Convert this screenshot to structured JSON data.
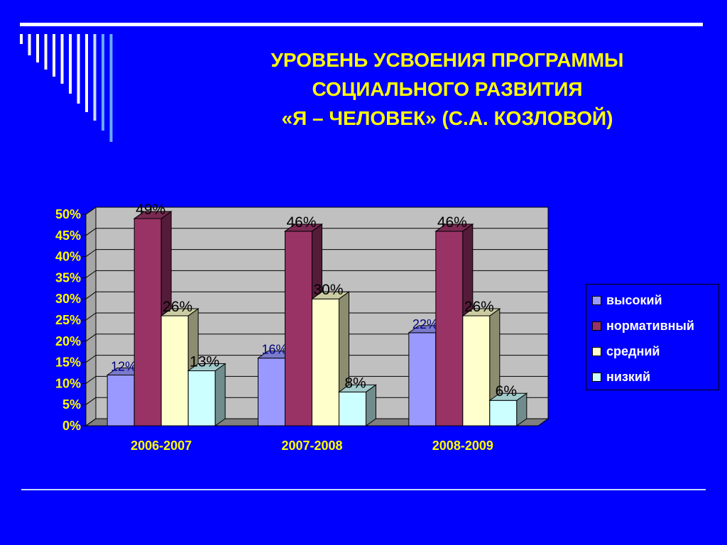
{
  "slide": {
    "title_lines": [
      "УРОВЕНЬ УСВОЕНИЯ ПРОГРАММЫ",
      "СОЦИАЛЬНОГО  РАЗВИТИЯ",
      "«Я – ЧЕЛОВЕК» (С.А. КОЗЛОВОЙ)"
    ]
  },
  "legend": {
    "items": [
      {
        "label": "высокий",
        "color": "#9999ff"
      },
      {
        "label": "нормативный",
        "color": "#993366"
      },
      {
        "label": "средний",
        "color": "#ffffcc"
      },
      {
        "label": "низкий",
        "color": "#ccffff"
      }
    ]
  },
  "chart_data": {
    "type": "bar",
    "categories": [
      "2006-2007",
      "2007-2008",
      "2008-2009"
    ],
    "series": [
      {
        "name": "высокий",
        "values": [
          12,
          16,
          22
        ],
        "labels": [
          "12%",
          "16%",
          "22%"
        ],
        "color": "#9999ff"
      },
      {
        "name": "нормативный",
        "values": [
          49,
          46,
          46
        ],
        "labels": [
          "49%",
          "46%",
          "46%"
        ],
        "color": "#993366"
      },
      {
        "name": "средний",
        "values": [
          26,
          30,
          26
        ],
        "labels": [
          "26%",
          "30%",
          "26%"
        ],
        "color": "#ffffcc"
      },
      {
        "name": "низкий",
        "values": [
          13,
          8,
          6
        ],
        "labels": [
          "13%",
          "8%",
          "6%"
        ],
        "color": "#ccffff"
      }
    ],
    "yticks": [
      "0%",
      "5%",
      "10%",
      "15%",
      "20%",
      "25%",
      "30%",
      "35%",
      "40%",
      "45%",
      "50%"
    ],
    "ylim": [
      0,
      50
    ],
    "grid": true,
    "legend_position": "right",
    "three_d": true
  }
}
